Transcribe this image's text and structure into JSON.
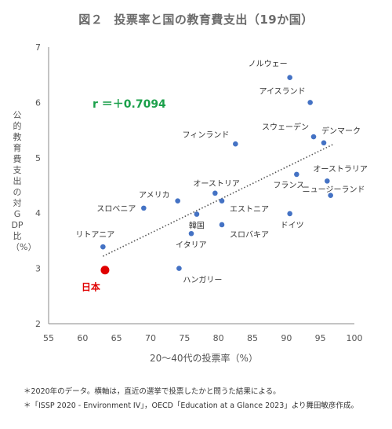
{
  "header": {
    "figure_no": "図２",
    "title": "投票率と国の教育費支出（19か国）"
  },
  "chart_data": {
    "type": "scatter",
    "xlabel": "20〜40代の投票率（%）",
    "ylabel": "公的教育費支出の対GDP比（%）",
    "xlim": [
      55,
      100
    ],
    "ylim": [
      2,
      7
    ],
    "xticks": [
      "55",
      "60",
      "65",
      "70",
      "75",
      "80",
      "85",
      "90",
      "95",
      "100"
    ],
    "yticks": [
      "2",
      "3",
      "4",
      "5",
      "6",
      "7"
    ],
    "annotation": "r ＝＋0.7094",
    "trendline": {
      "style": "dotted",
      "x": [
        63,
        97
      ],
      "y": [
        3.22,
        5.25
      ]
    },
    "points": [
      {
        "name": "ノルウェー",
        "x": 90.5,
        "y": 6.45
      },
      {
        "name": "アイスランド",
        "x": 93.5,
        "y": 6.0
      },
      {
        "name": "スウェーデン",
        "x": 94.0,
        "y": 5.38
      },
      {
        "name": "デンマーク",
        "x": 95.5,
        "y": 5.27
      },
      {
        "name": "フィンランド",
        "x": 82.5,
        "y": 5.25
      },
      {
        "name": "オーストラリア",
        "x": 96.0,
        "y": 4.58
      },
      {
        "name": "フランス",
        "x": 91.5,
        "y": 4.7
      },
      {
        "name": "ニュージーランド",
        "x": 96.5,
        "y": 4.32
      },
      {
        "name": "オーストリア",
        "x": 79.5,
        "y": 4.36
      },
      {
        "name": "アメリカ",
        "x": 74.0,
        "y": 4.22
      },
      {
        "name": "エストニア",
        "x": 80.5,
        "y": 4.22
      },
      {
        "name": "スロベニア",
        "x": 69.0,
        "y": 4.09
      },
      {
        "name": "ドイツ",
        "x": 90.5,
        "y": 3.99
      },
      {
        "name": "韓国",
        "x": 76.8,
        "y": 3.98
      },
      {
        "name": "スロバキア",
        "x": 80.5,
        "y": 3.79
      },
      {
        "name": "イタリア",
        "x": 76.0,
        "y": 3.63
      },
      {
        "name": "リトアニア",
        "x": 63.0,
        "y": 3.39
      },
      {
        "name": "ハンガリー",
        "x": 74.2,
        "y": 3.0
      },
      {
        "name": "日本",
        "x": 63.3,
        "y": 2.97,
        "highlight": true
      }
    ]
  },
  "notes": [
    "＊2020年のデータ。横軸は，直近の選挙で投票したかと問うた結果による。",
    "＊「ISSP 2020 - Environment IV」，OECD「Education at a Glance 2023」より舞田敏彦作成。"
  ],
  "colors": {
    "point": "#4472c4",
    "highlight": "#e00000",
    "annotation": "#1aa04a",
    "trend": "#555555"
  }
}
